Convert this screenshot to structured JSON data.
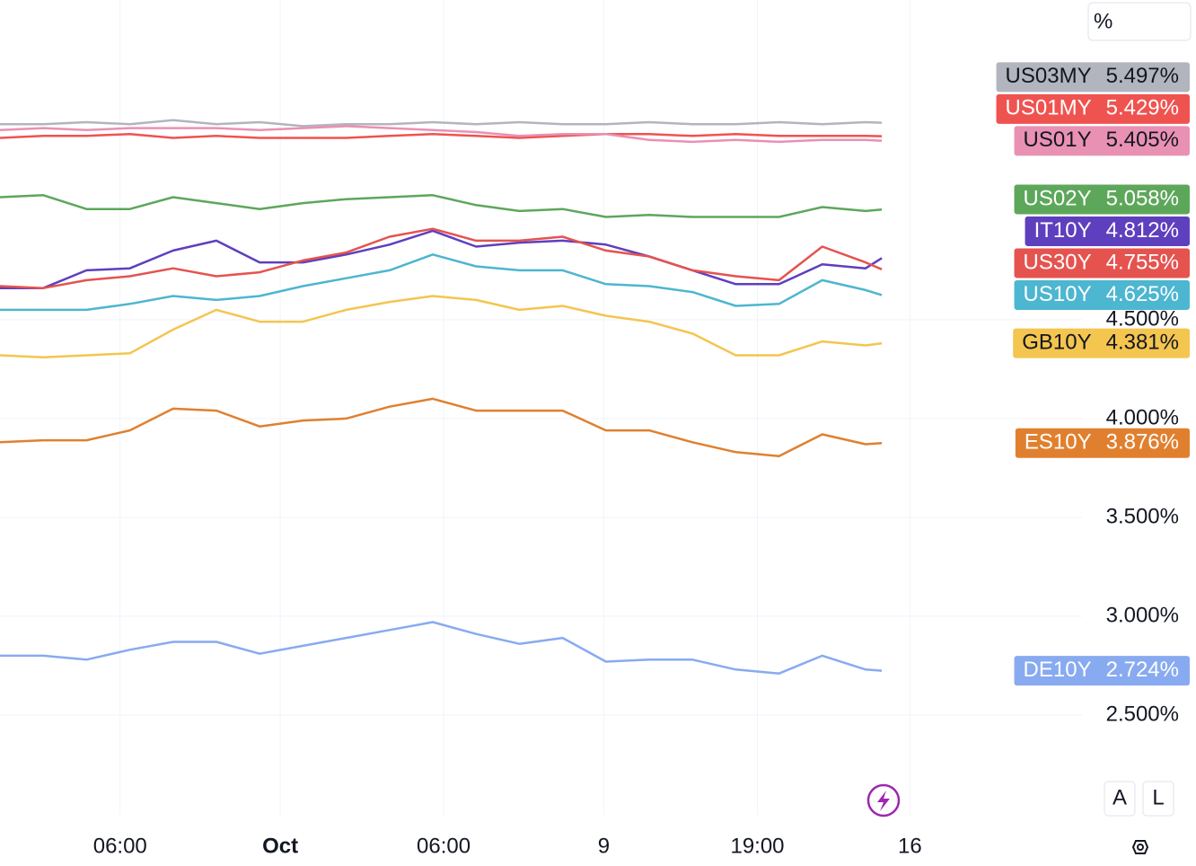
{
  "chart_data": {
    "type": "line",
    "y_unit_label": "%",
    "x": [
      0,
      4,
      8,
      12,
      16,
      20,
      24,
      28,
      32,
      36,
      40,
      44,
      48,
      52,
      56,
      60,
      64,
      68,
      72,
      76,
      80,
      81.5
    ],
    "xlim": [
      0,
      100
    ],
    "xticks": [
      {
        "value": 11.1,
        "label": "06:00"
      },
      {
        "value": 25.9,
        "label": "Oct"
      },
      {
        "value": 41,
        "label": "06:00"
      },
      {
        "value": 55.8,
        "label": "9"
      },
      {
        "value": 70,
        "label": "19:00"
      },
      {
        "value": 84.1,
        "label": "16"
      }
    ],
    "ylim": [
      1.995,
      6.118
    ],
    "yticks": [
      {
        "value": 2.5,
        "label": "2.500%"
      },
      {
        "value": 3,
        "label": "3.000%"
      },
      {
        "value": 3.5,
        "label": "3.500%"
      },
      {
        "value": 4,
        "label": "4.000%"
      },
      {
        "value": 4.5,
        "label": "4.500%"
      }
    ],
    "grid": true,
    "scale_buttons": [
      "A",
      "L"
    ],
    "series": [
      {
        "name": "US03MY",
        "color": "#b2b5be",
        "values": [
          5.49,
          5.49,
          5.5,
          5.49,
          5.51,
          5.49,
          5.5,
          5.48,
          5.49,
          5.49,
          5.5,
          5.49,
          5.5,
          5.49,
          5.49,
          5.5,
          5.49,
          5.49,
          5.5,
          5.49,
          5.5,
          5.497
        ],
        "value_labels": [
          null,
          null,
          null,
          null,
          null,
          null,
          null,
          null,
          null,
          null,
          null,
          null,
          null,
          null,
          null,
          null,
          null,
          null,
          null,
          null,
          null,
          "5.497%"
        ]
      },
      {
        "name": "US01MY",
        "color": "#ef5350",
        "values": [
          5.42,
          5.43,
          5.43,
          5.44,
          5.42,
          5.43,
          5.42,
          5.42,
          5.42,
          5.43,
          5.44,
          5.43,
          5.42,
          5.43,
          5.44,
          5.44,
          5.43,
          5.44,
          5.43,
          5.43,
          5.43,
          5.429
        ],
        "value_labels": [
          null,
          null,
          null,
          null,
          null,
          null,
          null,
          null,
          null,
          null,
          null,
          null,
          null,
          null,
          null,
          null,
          null,
          null,
          null,
          null,
          null,
          "5.429%"
        ]
      },
      {
        "name": "US01Y",
        "color": "#e991b3",
        "values": [
          5.46,
          5.47,
          5.46,
          5.47,
          5.47,
          5.47,
          5.46,
          5.47,
          5.48,
          5.47,
          5.46,
          5.45,
          5.43,
          5.44,
          5.44,
          5.41,
          5.4,
          5.41,
          5.4,
          5.41,
          5.41,
          5.405
        ],
        "value_labels": [
          null,
          null,
          null,
          null,
          null,
          null,
          null,
          null,
          null,
          null,
          null,
          null,
          null,
          null,
          null,
          null,
          null,
          null,
          null,
          null,
          null,
          "5.405%"
        ]
      },
      {
        "name": "US02Y",
        "color": "#5da75b",
        "values": [
          5.12,
          5.13,
          5.06,
          5.06,
          5.12,
          5.09,
          5.06,
          5.09,
          5.11,
          5.12,
          5.13,
          5.08,
          5.05,
          5.06,
          5.02,
          5.03,
          5.02,
          5.02,
          5.02,
          5.07,
          5.05,
          5.058
        ],
        "value_labels": [
          null,
          null,
          null,
          null,
          null,
          null,
          null,
          null,
          null,
          null,
          null,
          null,
          null,
          null,
          null,
          null,
          null,
          null,
          null,
          null,
          null,
          "5.058%"
        ]
      },
      {
        "name": "IT10Y",
        "color": "#5e3fbe",
        "values": [
          4.66,
          4.66,
          4.75,
          4.76,
          4.85,
          4.9,
          4.79,
          4.79,
          4.83,
          4.88,
          4.95,
          4.87,
          4.89,
          4.9,
          4.88,
          4.82,
          4.75,
          4.68,
          4.68,
          4.78,
          4.76,
          4.812
        ],
        "value_labels": [
          null,
          null,
          null,
          null,
          null,
          null,
          null,
          null,
          null,
          null,
          null,
          null,
          null,
          null,
          null,
          null,
          null,
          null,
          null,
          null,
          null,
          "4.812%"
        ]
      },
      {
        "name": "US30Y",
        "color": "#e5534f",
        "values": [
          4.67,
          4.66,
          4.7,
          4.72,
          4.76,
          4.72,
          4.74,
          4.8,
          4.84,
          4.92,
          4.96,
          4.9,
          4.9,
          4.92,
          4.85,
          4.82,
          4.75,
          4.72,
          4.7,
          4.87,
          4.79,
          4.755
        ],
        "value_labels": [
          null,
          null,
          null,
          null,
          null,
          null,
          null,
          null,
          null,
          null,
          null,
          null,
          null,
          null,
          null,
          null,
          null,
          null,
          null,
          null,
          null,
          "4.755%"
        ]
      },
      {
        "name": "US10Y",
        "color": "#4db6d0",
        "values": [
          4.55,
          4.55,
          4.55,
          4.58,
          4.62,
          4.6,
          4.62,
          4.67,
          4.71,
          4.75,
          4.83,
          4.77,
          4.75,
          4.75,
          4.68,
          4.67,
          4.64,
          4.57,
          4.58,
          4.7,
          4.65,
          4.625
        ],
        "value_labels": [
          null,
          null,
          null,
          null,
          null,
          null,
          null,
          null,
          null,
          null,
          null,
          null,
          null,
          null,
          null,
          null,
          null,
          null,
          null,
          null,
          null,
          "4.625%"
        ]
      },
      {
        "name": "GB10Y",
        "color": "#f4c54f",
        "values": [
          4.32,
          4.31,
          4.32,
          4.33,
          4.45,
          4.55,
          4.49,
          4.49,
          4.55,
          4.59,
          4.62,
          4.6,
          4.55,
          4.57,
          4.52,
          4.49,
          4.43,
          4.32,
          4.32,
          4.39,
          4.37,
          4.381
        ],
        "value_labels": [
          null,
          null,
          null,
          null,
          null,
          null,
          null,
          null,
          null,
          null,
          null,
          null,
          null,
          null,
          null,
          null,
          null,
          null,
          null,
          null,
          null,
          "4.381%"
        ]
      },
      {
        "name": "ES10Y",
        "color": "#e0802f",
        "values": [
          3.88,
          3.89,
          3.89,
          3.94,
          4.05,
          4.04,
          3.96,
          3.99,
          4.0,
          4.06,
          4.1,
          4.04,
          4.04,
          4.04,
          3.94,
          3.94,
          3.88,
          3.83,
          3.81,
          3.92,
          3.87,
          3.876
        ],
        "value_labels": [
          null,
          null,
          null,
          null,
          null,
          null,
          null,
          null,
          null,
          null,
          null,
          null,
          null,
          null,
          null,
          null,
          null,
          null,
          null,
          null,
          null,
          "3.876%"
        ]
      },
      {
        "name": "DE10Y",
        "color": "#88aaf0",
        "values": [
          2.8,
          2.8,
          2.78,
          2.83,
          2.87,
          2.87,
          2.81,
          2.85,
          2.89,
          2.93,
          2.97,
          2.91,
          2.86,
          2.89,
          2.77,
          2.78,
          2.78,
          2.73,
          2.71,
          2.8,
          2.73,
          2.724
        ],
        "value_labels": [
          null,
          null,
          null,
          null,
          null,
          null,
          null,
          null,
          null,
          null,
          null,
          null,
          null,
          null,
          null,
          null,
          null,
          null,
          null,
          null,
          null,
          "2.724%"
        ]
      }
    ]
  }
}
